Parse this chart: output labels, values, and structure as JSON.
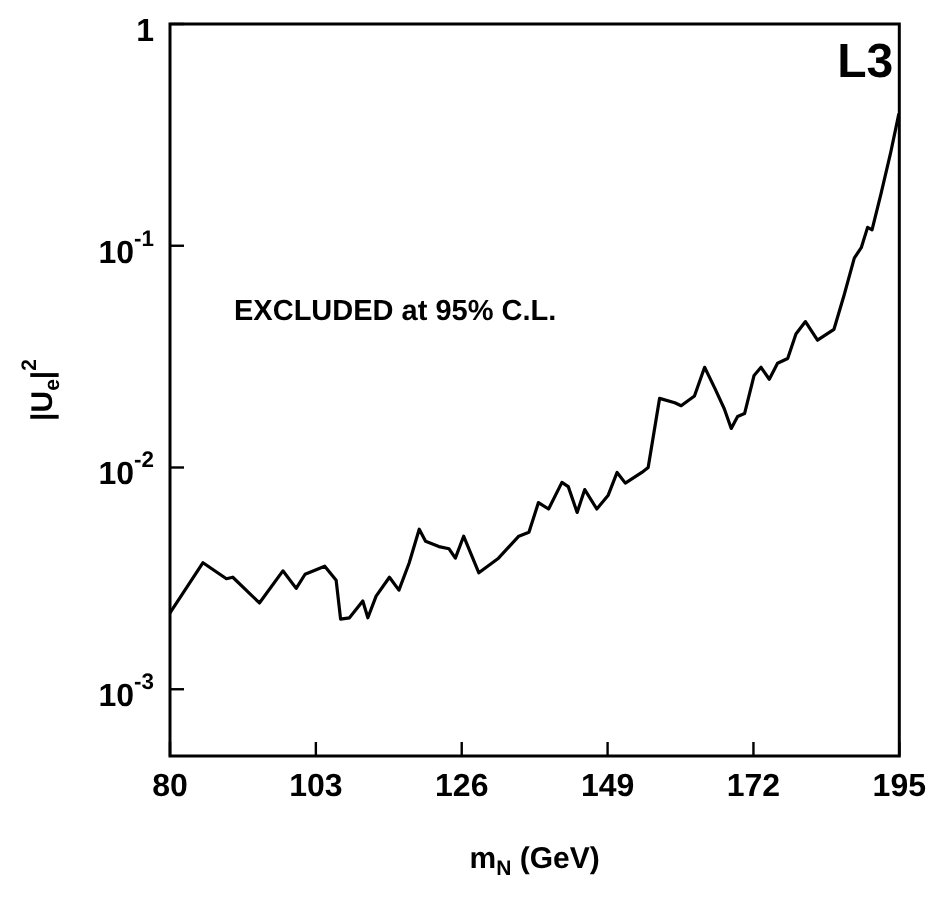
{
  "chart_data": {
    "type": "line",
    "xlabel": "m$_{N}$ (GeV)",
    "ylabel": "|U$_{e}$|$^{2}$",
    "log": "y",
    "grid": false,
    "legend": false,
    "marker": "none",
    "line_style": "solid",
    "xlim": [
      80,
      195
    ],
    "xticks": [
      80,
      103,
      126,
      149,
      172,
      195
    ],
    "ylim": [
      0.0005,
      1
    ],
    "yticks": [
      1,
      {
        "value": 0.1,
        "label": "10$^{-1}$"
      },
      {
        "value": 0.01,
        "label": "10$^{-2}$"
      },
      {
        "value": 0.001,
        "label": "10$^{-3}$"
      }
    ],
    "annotations": [
      "EXCLUDED at 95% C.L.",
      "L3"
    ],
    "series": [
      {
        "color": "#000000",
        "x": [
          80,
          85.2,
          88.9,
          89.9,
          94.1,
          97.8,
          99.9,
          101.3,
          104.4,
          106.2,
          106.9,
          108.3,
          110.4,
          111.2,
          112.5,
          114.6,
          116.1,
          117.7,
          119.3,
          120.3,
          122.4,
          124,
          125,
          126.3,
          128.7,
          131.8,
          135,
          136.6,
          138.1,
          139.7,
          141.8,
          142.8,
          144.2,
          145.4,
          147.3,
          149.1,
          150.5,
          151.8,
          154.4,
          155.4,
          157.2,
          159.6,
          160.6,
          162.7,
          164.3,
          165.9,
          167.4,
          168.5,
          169.5,
          170.6,
          172.1,
          173.2,
          174.5,
          175.8,
          177.4,
          178.7,
          180.2,
          182.1,
          184.7,
          186.3,
          187.9,
          189,
          190,
          190.7,
          192.1,
          193.6,
          194.9
        ],
        "values": [
          0.00221,
          0.00372,
          0.00315,
          0.0032,
          0.00245,
          0.00342,
          0.00285,
          0.0033,
          0.00359,
          0.0031,
          0.00207,
          0.0021,
          0.0025,
          0.0021,
          0.00263,
          0.0032,
          0.0028,
          0.0037,
          0.00527,
          0.00465,
          0.0044,
          0.0043,
          0.0039,
          0.0049,
          0.00335,
          0.0039,
          0.0049,
          0.0051,
          0.00695,
          0.0065,
          0.00857,
          0.0082,
          0.00627,
          0.00795,
          0.0065,
          0.0075,
          0.0095,
          0.0085,
          0.0095,
          0.01,
          0.0205,
          0.0196,
          0.019,
          0.021,
          0.0283,
          0.0228,
          0.0184,
          0.015,
          0.017,
          0.0175,
          0.026,
          0.0283,
          0.025,
          0.0295,
          0.031,
          0.04,
          0.0455,
          0.0375,
          0.042,
          0.06,
          0.088,
          0.098,
          0.121,
          0.118,
          0.171,
          0.26,
          0.39
        ]
      }
    ]
  }
}
